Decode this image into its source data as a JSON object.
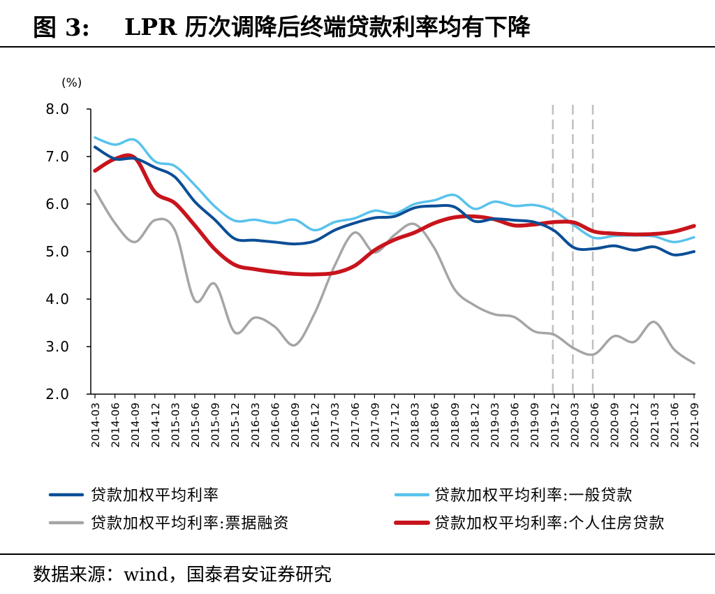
{
  "figure": {
    "label": "图 3:",
    "title": "LPR 历次调降后终端贷款利率均有下降"
  },
  "source": {
    "prefix": "数据来源：",
    "text": "wind，国泰君安证券研究"
  },
  "colors": {
    "series": [
      "#0b4e96",
      "#58c2ec",
      "#a5a5a5",
      "#c8141c"
    ],
    "axis": "#000000",
    "dashed": "#bfbfbf"
  },
  "chart_data": {
    "type": "line",
    "title": "",
    "xlabel": "",
    "ylabel": "(%)",
    "ylim": [
      2.0,
      8.0
    ],
    "yticks": [
      "2.0",
      "3.0",
      "4.0",
      "5.0",
      "6.0",
      "7.0",
      "8.0"
    ],
    "grid": false,
    "legend": "bottom",
    "x": [
      "2014-03",
      "2014-06",
      "2014-09",
      "2014-12",
      "2015-03",
      "2015-06",
      "2015-09",
      "2015-12",
      "2016-03",
      "2016-06",
      "2016-09",
      "2016-12",
      "2017-03",
      "2017-06",
      "2017-09",
      "2017-12",
      "2018-03",
      "2018-06",
      "2018-09",
      "2018-12",
      "2019-03",
      "2019-06",
      "2019-09",
      "2019-12",
      "2020-03",
      "2020-06",
      "2020-09",
      "2020-12",
      "2021-03",
      "2021-06",
      "2021-09"
    ],
    "vlines": [
      "2019-12",
      "2020-03",
      "2020-06"
    ],
    "series": [
      {
        "name": "贷款加权平均利率",
        "values": [
          7.2,
          6.95,
          6.96,
          6.77,
          6.57,
          6.05,
          5.67,
          5.27,
          5.24,
          5.2,
          5.16,
          5.22,
          5.45,
          5.6,
          5.71,
          5.74,
          5.92,
          5.96,
          5.94,
          5.64,
          5.69,
          5.66,
          5.62,
          5.44,
          5.08,
          5.06,
          5.12,
          5.03,
          5.1,
          4.93,
          5.0
        ]
      },
      {
        "name": "贷款加权平均利率:一般贷款",
        "values": [
          7.4,
          7.25,
          7.35,
          6.9,
          6.8,
          6.4,
          5.95,
          5.65,
          5.67,
          5.6,
          5.67,
          5.45,
          5.62,
          5.7,
          5.86,
          5.8,
          6.0,
          6.08,
          6.19,
          5.9,
          6.05,
          5.96,
          5.98,
          5.85,
          5.55,
          5.29,
          5.33,
          5.34,
          5.32,
          5.2,
          5.3
        ]
      },
      {
        "name": "贷款加权平均利率:票据融资",
        "values": [
          6.29,
          5.6,
          5.2,
          5.66,
          5.45,
          3.97,
          4.32,
          3.3,
          3.61,
          3.42,
          3.03,
          3.7,
          4.7,
          5.4,
          4.98,
          5.35,
          5.58,
          5.07,
          4.21,
          3.87,
          3.68,
          3.62,
          3.32,
          3.25,
          2.96,
          2.84,
          3.22,
          3.1,
          3.52,
          2.94,
          2.65
        ]
      },
      {
        "name": "贷款加权平均利率:个人住房贷款",
        "values": [
          6.7,
          6.95,
          6.97,
          6.25,
          6.02,
          5.55,
          5.05,
          4.72,
          4.63,
          4.57,
          4.53,
          4.52,
          4.55,
          4.7,
          5.03,
          5.25,
          5.4,
          5.6,
          5.72,
          5.74,
          5.68,
          5.55,
          5.57,
          5.62,
          5.61,
          5.42,
          5.38,
          5.36,
          5.37,
          5.42,
          5.54
        ]
      }
    ]
  }
}
